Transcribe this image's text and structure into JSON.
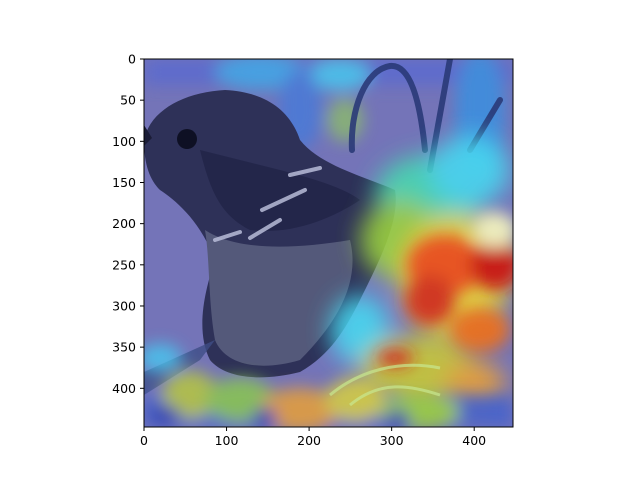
{
  "axes": {
    "x_ticks": [
      "0",
      "100",
      "200",
      "300",
      "400"
    ],
    "y_ticks": [
      "0",
      "50",
      "100",
      "150",
      "200",
      "250",
      "300",
      "350",
      "400"
    ],
    "x_range": [
      0,
      447
    ],
    "y_range": [
      0,
      447
    ]
  },
  "image": {
    "subject": "bird-on-branch",
    "overlay": "saliency-heatmap",
    "colormap": "jet",
    "colors": {
      "background": "#7474b8",
      "bird_dark": "#2a2d52",
      "bird_mid": "#43476e",
      "breast": "#5a5f78",
      "cold": "#2c3cb8",
      "cyan": "#46d8f0",
      "yellow": "#e8e038",
      "red": "#c81818"
    }
  }
}
